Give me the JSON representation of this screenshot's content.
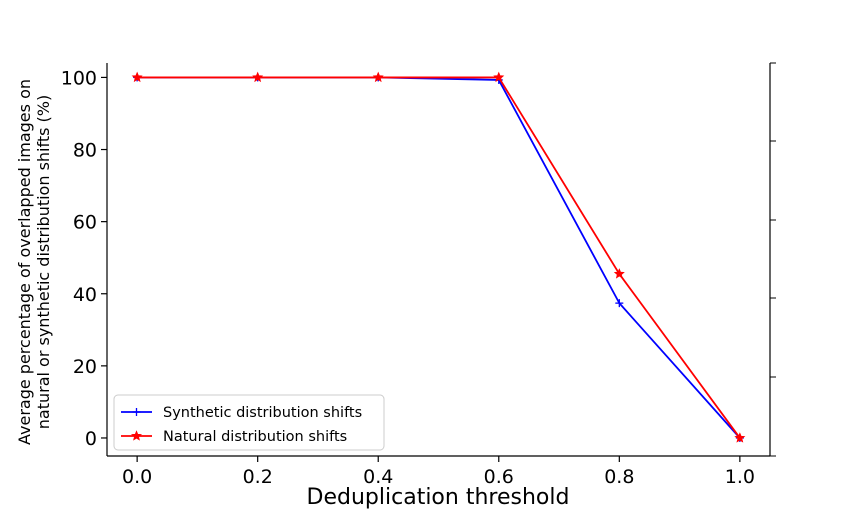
{
  "chart_data": {
    "type": "line",
    "title": "",
    "xlabel": "Deduplication threshold",
    "ylabel_lines": [
      "Average percentage of overlapped images on",
      "natural or synthetic distribution shifts (%)"
    ],
    "x": [
      0.0,
      0.2,
      0.4,
      0.6,
      0.8,
      1.0
    ],
    "x_tick_labels": [
      "0.0",
      "0.2",
      "0.4",
      "0.6",
      "0.8",
      "1.0"
    ],
    "y_ticks": [
      0,
      20,
      40,
      60,
      80,
      100
    ],
    "y_tick_labels": [
      "0",
      "20",
      "40",
      "60",
      "80",
      "100"
    ],
    "xlim": [
      -0.05,
      1.05
    ],
    "ylim": [
      -5,
      104
    ],
    "grid": false,
    "legend_position": "lower-left",
    "series": [
      {
        "name": "Synthetic distribution shifts",
        "values": [
          100,
          100,
          100,
          99.3,
          37.4,
          0
        ],
        "color": "#0000ff",
        "marker": "plus"
      },
      {
        "name": "Natural distribution shifts",
        "values": [
          100,
          100,
          100,
          100,
          45.5,
          0
        ],
        "color": "#ff0000",
        "marker": "star"
      }
    ]
  }
}
